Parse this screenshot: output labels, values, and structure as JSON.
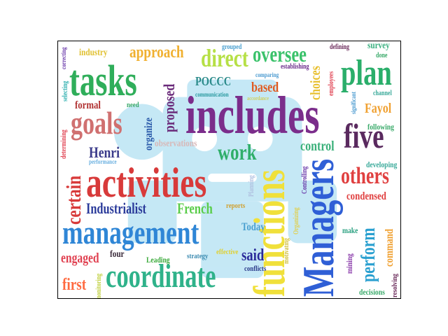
{
  "words": [
    {
      "text": "includes",
      "color": "#7b2d8b"
    },
    {
      "text": "activities",
      "color": "#d83a3a"
    },
    {
      "text": "management",
      "color": "#2f86d6"
    },
    {
      "text": "functions",
      "color": "#f0e03a"
    },
    {
      "text": "Managers",
      "color": "#2f5fd6"
    },
    {
      "text": "tasks",
      "color": "#2fae5a"
    },
    {
      "text": "coordinate",
      "color": "#2fb28a"
    },
    {
      "text": "plan",
      "color": "#2aae6a"
    },
    {
      "text": "five",
      "color": "#5a2a5f"
    },
    {
      "text": "goals",
      "color": "#d07070"
    },
    {
      "text": "oversee",
      "color": "#3ac26a"
    },
    {
      "text": "certain",
      "color": "#d83a3a"
    },
    {
      "text": "direct",
      "color": "#b6e046"
    },
    {
      "text": "work",
      "color": "#2fae6a"
    },
    {
      "text": "others",
      "color": "#e04040"
    },
    {
      "text": "perform",
      "color": "#2aa0d0"
    },
    {
      "text": "approach",
      "color": "#f0b030"
    },
    {
      "text": "proposed",
      "color": "#6a2a7a"
    },
    {
      "text": "Henri",
      "color": "#3a3a8a"
    },
    {
      "text": "Industrialist",
      "color": "#2a3a9a"
    },
    {
      "text": "French",
      "color": "#5acd4a"
    },
    {
      "text": "said",
      "color": "#2a2a9a"
    },
    {
      "text": "engaged",
      "color": "#e04050"
    },
    {
      "text": "first",
      "color": "#ff6a40"
    },
    {
      "text": "control",
      "color": "#3ab07a"
    },
    {
      "text": "choices",
      "color": "#e8c030"
    },
    {
      "text": "based",
      "color": "#e05a20"
    },
    {
      "text": "POCCC",
      "color": "#2a8a8a"
    },
    {
      "text": "Fayol",
      "color": "#f0a030"
    },
    {
      "text": "condensed",
      "color": "#e04040"
    },
    {
      "text": "command",
      "color": "#f0a030"
    },
    {
      "text": "organize",
      "color": "#2a5aaa"
    },
    {
      "text": "formal",
      "color": "#b03030"
    },
    {
      "text": "Today",
      "color": "#4aa0d0"
    },
    {
      "text": "observations",
      "color": "#d8b8b8"
    },
    {
      "text": "industry",
      "color": "#e0c030"
    },
    {
      "text": "survey",
      "color": "#3ab080"
    },
    {
      "text": "following",
      "color": "#3aaa6a"
    },
    {
      "text": "developing",
      "color": "#3aaa9a"
    },
    {
      "text": "make",
      "color": "#2aa080"
    },
    {
      "text": "mining",
      "color": "#8a3aaa"
    },
    {
      "text": "decisions",
      "color": "#3aaa6a"
    },
    {
      "text": "resolving",
      "color": "#6a2a5a"
    },
    {
      "text": "conflicts",
      "color": "#2a3a8a"
    },
    {
      "text": "strategy",
      "color": "#3a8ab0"
    },
    {
      "text": "effective",
      "color": "#e0d030"
    },
    {
      "text": "Leading",
      "color": "#3aaa3a"
    },
    {
      "text": "four",
      "color": "#3a2a3a"
    },
    {
      "text": "monitoring",
      "color": "#c0d040"
    },
    {
      "text": "motivating",
      "color": "#d0c040"
    },
    {
      "text": "Organizing",
      "color": "#e0d050"
    },
    {
      "text": "Controlling",
      "color": "#6a3aaa"
    },
    {
      "text": "Planning",
      "color": "#b0c0e0"
    },
    {
      "text": "reports",
      "color": "#d0a030"
    },
    {
      "text": "need",
      "color": "#3aaa6a"
    },
    {
      "text": "performance",
      "color": "#6ab0e0"
    },
    {
      "text": "determining",
      "color": "#e04050"
    },
    {
      "text": "selecting",
      "color": "#30b0b0"
    },
    {
      "text": "correcting",
      "color": "#6a3aaa"
    },
    {
      "text": "grouped",
      "color": "#4aa0d0"
    },
    {
      "text": "comparing",
      "color": "#4a9ad0"
    },
    {
      "text": "communication",
      "color": "#2a9aa0"
    },
    {
      "text": "establishing",
      "color": "#6a2a8a"
    },
    {
      "text": "defining",
      "color": "#6a2a5a"
    },
    {
      "text": "done",
      "color": "#3aaa6a"
    },
    {
      "text": "employees",
      "color": "#e04050"
    },
    {
      "text": "significant",
      "color": "#4a9ad0"
    },
    {
      "text": "channel",
      "color": "#3aaa9a"
    },
    {
      "text": "accordance",
      "color": "#d0d060"
    }
  ]
}
